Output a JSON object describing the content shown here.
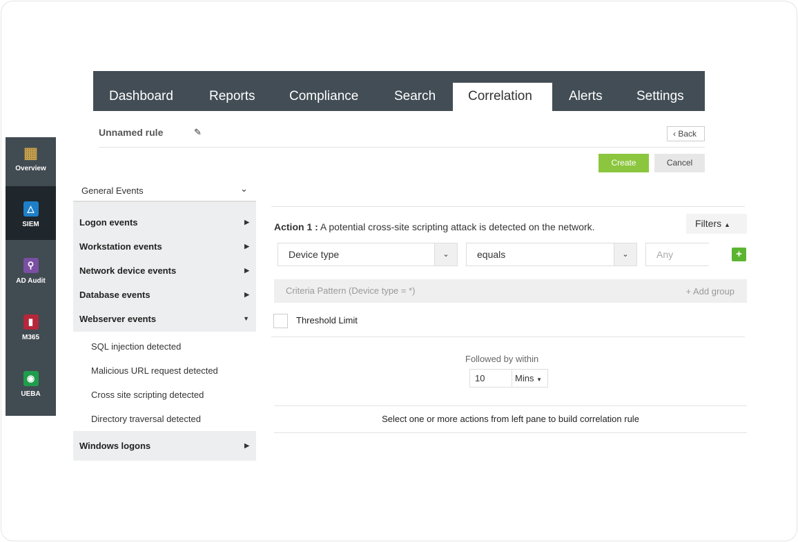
{
  "nav": {
    "tabs": [
      "Dashboard",
      "Reports",
      "Compliance",
      "Search",
      "Correlation",
      "Alerts",
      "Settings"
    ],
    "active": "Correlation"
  },
  "rail": [
    {
      "label": "Overview",
      "icon": "grid-icon"
    },
    {
      "label": "SIEM",
      "icon": "shield-icon",
      "active": true
    },
    {
      "label": "AD Audit",
      "icon": "magnifier-icon"
    },
    {
      "label": "M365",
      "icon": "office-icon"
    },
    {
      "label": "UEBA",
      "icon": "eye-icon"
    }
  ],
  "rule": {
    "name": "Unnamed rule",
    "back": "Back",
    "create": "Create",
    "cancel": "Cancel"
  },
  "menu": {
    "header": "General Events",
    "groups": [
      "Logon events",
      "Workstation events",
      "Network device events",
      "Database events",
      "Webserver events"
    ],
    "sub_items": [
      "SQL injection detected",
      "Malicious URL request detected",
      "Cross site scripting detected",
      "Directory traversal detected"
    ],
    "last": "Windows logons"
  },
  "action": {
    "label": "Action 1 :",
    "text": "A potential cross-site scripting attack is detected on the network.",
    "filters": "Filters",
    "field": "Device type",
    "operator": "equals",
    "value_placeholder": "Any",
    "criteria": "Criteria Pattern (Device type = *)",
    "add_group": "Add group",
    "threshold": "Threshold Limit"
  },
  "followed": {
    "label": "Followed by within",
    "value": "10",
    "unit": "Mins"
  },
  "hint": "Select one or more actions from left pane to build correlation rule",
  "colors": {
    "nav": "#424d55",
    "create": "#8cc63f",
    "plus": "#5bb531"
  }
}
